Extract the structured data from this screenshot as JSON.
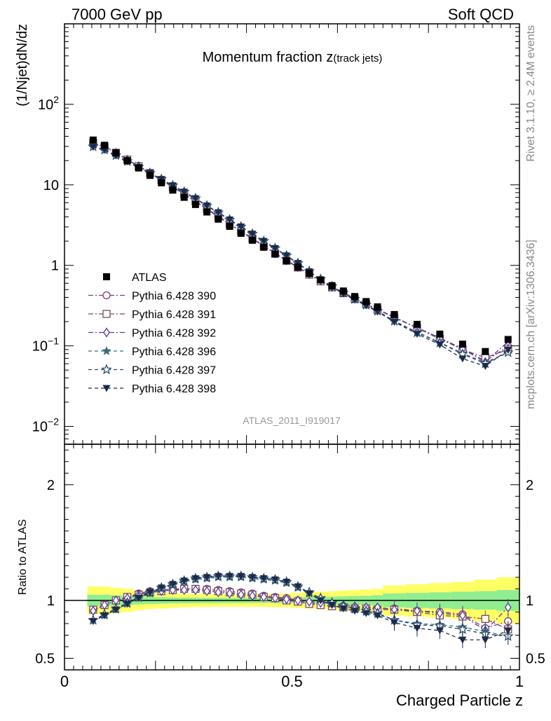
{
  "header": {
    "left": "7000 GeV pp",
    "right": "Soft QCD",
    "side_top": "Rivet 3.1.10, ≥ 2.4M events",
    "side_bottom": "mcplots.cern.ch [arXiv:1306.3436]"
  },
  "chart_data": {
    "type": "scatter",
    "title": "Momentum fraction z(track jets)",
    "title_main": "Momentum fraction z",
    "title_sub": "(track jets)",
    "watermark": "ATLAS_2011_I919017",
    "ylabel": "(1/Njet)dN/dz",
    "ratio_ylabel": "Ratio to ATLAS",
    "xlabel": "Charged Particle z",
    "xlim": [
      0,
      1
    ],
    "ylim": [
      0.006,
      1000
    ],
    "yscale": "log",
    "ratio_ylim": [
      0.4,
      2.35
    ],
    "legend_position": "left-middle",
    "x_ticks": [
      "0",
      "0.5",
      "1"
    ],
    "y_ticks_main": [
      {
        "base": "10",
        "exp": "2",
        "value": 100
      },
      {
        "base": "10",
        "exp": "",
        "value": 10
      },
      {
        "base": "1",
        "exp": "",
        "value": 1
      },
      {
        "base": "10",
        "exp": "−1",
        "value": 0.1
      },
      {
        "base": "10",
        "exp": "−2",
        "value": 0.01
      }
    ],
    "y_ticks_ratio": [
      "0.5",
      "1",
      "2"
    ],
    "x": [
      0.063,
      0.088,
      0.113,
      0.138,
      0.163,
      0.188,
      0.213,
      0.238,
      0.263,
      0.288,
      0.313,
      0.338,
      0.363,
      0.388,
      0.413,
      0.438,
      0.463,
      0.488,
      0.513,
      0.538,
      0.563,
      0.588,
      0.613,
      0.638,
      0.663,
      0.688,
      0.725,
      0.775,
      0.825,
      0.875,
      0.925,
      0.975
    ],
    "data": {
      "name": "ATLAS",
      "values": [
        36,
        31,
        25,
        20,
        16.2,
        13.1,
        10.6,
        8.6,
        7.0,
        5.7,
        4.6,
        3.75,
        3.05,
        2.5,
        2.05,
        1.68,
        1.38,
        1.14,
        0.95,
        0.79,
        0.66,
        0.56,
        0.48,
        0.41,
        0.355,
        0.305,
        0.245,
        0.185,
        0.14,
        0.105,
        0.085,
        0.12
      ],
      "color": "#000000"
    },
    "band_ratio": {
      "x_edges": [
        0.05,
        0.075,
        0.1,
        0.125,
        0.15,
        0.175,
        0.2,
        0.225,
        0.25,
        0.275,
        0.3,
        0.325,
        0.35,
        0.375,
        0.4,
        0.425,
        0.45,
        0.475,
        0.5,
        0.525,
        0.55,
        0.575,
        0.6,
        0.625,
        0.65,
        0.675,
        0.7,
        0.75,
        0.8,
        0.85,
        0.9,
        0.95,
        1.0
      ],
      "green_half": [
        0.05,
        0.05,
        0.045,
        0.04,
        0.035,
        0.03,
        0.028,
        0.026,
        0.025,
        0.024,
        0.023,
        0.022,
        0.022,
        0.022,
        0.022,
        0.022,
        0.023,
        0.024,
        0.025,
        0.028,
        0.03,
        0.032,
        0.035,
        0.038,
        0.04,
        0.045,
        0.06,
        0.065,
        0.07,
        0.075,
        0.08,
        0.09
      ],
      "yellow_half": [
        0.12,
        0.12,
        0.11,
        0.1,
        0.085,
        0.075,
        0.07,
        0.065,
        0.06,
        0.058,
        0.056,
        0.054,
        0.054,
        0.054,
        0.055,
        0.056,
        0.058,
        0.06,
        0.065,
        0.07,
        0.075,
        0.08,
        0.085,
        0.09,
        0.095,
        0.1,
        0.13,
        0.14,
        0.15,
        0.16,
        0.18,
        0.2
      ],
      "green_color": "#90ee90",
      "yellow_color": "#ffff66"
    },
    "series": [
      {
        "name": "Pythia 6.428 390",
        "color": "#7b3a7b",
        "marker": "circle",
        "dash": "7,3,2,3",
        "ratio": [
          0.92,
          0.96,
          1.0,
          1.03,
          1.06,
          1.08,
          1.09,
          1.1,
          1.1,
          1.1,
          1.1,
          1.09,
          1.08,
          1.07,
          1.06,
          1.04,
          1.03,
          1.02,
          1.0,
          0.98,
          0.96,
          0.95,
          0.95,
          0.94,
          0.93,
          0.93,
          0.93,
          0.91,
          0.9,
          0.88,
          0.76,
          0.82
        ]
      },
      {
        "name": "Pythia 6.428 391",
        "color": "#7a4a5a",
        "marker": "square",
        "dash": "7,3,2,3",
        "ratio": [
          0.92,
          0.96,
          1.0,
          1.03,
          1.05,
          1.07,
          1.08,
          1.09,
          1.1,
          1.1,
          1.09,
          1.08,
          1.07,
          1.06,
          1.05,
          1.03,
          1.02,
          1.0,
          0.99,
          0.97,
          0.96,
          0.95,
          0.94,
          0.93,
          0.93,
          0.92,
          0.92,
          0.9,
          0.87,
          0.86,
          0.84,
          0.75
        ]
      },
      {
        "name": "Pythia 6.428 392",
        "color": "#5b3b9b",
        "marker": "diamond",
        "dash": "7,3,2,3",
        "ratio": [
          0.91,
          0.96,
          1.0,
          1.02,
          1.05,
          1.07,
          1.08,
          1.09,
          1.09,
          1.09,
          1.08,
          1.07,
          1.06,
          1.05,
          1.04,
          1.03,
          1.02,
          1.01,
          1.0,
          0.99,
          0.98,
          0.97,
          0.96,
          0.95,
          0.94,
          0.94,
          0.92,
          0.91,
          0.89,
          0.87,
          0.74,
          0.94
        ]
      },
      {
        "name": "Pythia 6.428 396",
        "color": "#3b6b7b",
        "marker": "star",
        "dash": "5,4",
        "ratio": [
          0.83,
          0.87,
          0.92,
          0.97,
          1.02,
          1.06,
          1.1,
          1.13,
          1.16,
          1.18,
          1.19,
          1.2,
          1.2,
          1.2,
          1.19,
          1.18,
          1.17,
          1.15,
          1.11,
          1.06,
          1.01,
          0.97,
          0.94,
          0.92,
          0.9,
          0.88,
          0.83,
          0.8,
          0.79,
          0.77,
          0.73,
          0.69
        ]
      },
      {
        "name": "Pythia 6.428 397",
        "color": "#2b4b6b",
        "marker": "star-open",
        "dash": "5,4",
        "ratio": [
          0.83,
          0.88,
          0.93,
          0.98,
          1.03,
          1.07,
          1.11,
          1.14,
          1.17,
          1.19,
          1.2,
          1.21,
          1.21,
          1.21,
          1.2,
          1.19,
          1.18,
          1.16,
          1.12,
          1.07,
          1.02,
          0.98,
          0.95,
          0.93,
          0.91,
          0.89,
          0.83,
          0.79,
          0.78,
          0.75,
          0.71,
          0.69
        ]
      },
      {
        "name": "Pythia 6.428 398",
        "color": "#1b2b4b",
        "marker": "triangle-down",
        "dash": "5,4",
        "ratio": [
          0.82,
          0.87,
          0.92,
          0.97,
          1.02,
          1.07,
          1.11,
          1.14,
          1.17,
          1.19,
          1.2,
          1.21,
          1.21,
          1.21,
          1.2,
          1.19,
          1.18,
          1.16,
          1.12,
          1.06,
          1.0,
          0.96,
          0.93,
          0.91,
          0.89,
          0.87,
          0.81,
          0.76,
          0.74,
          0.66,
          0.66,
          0.74
        ]
      }
    ]
  }
}
